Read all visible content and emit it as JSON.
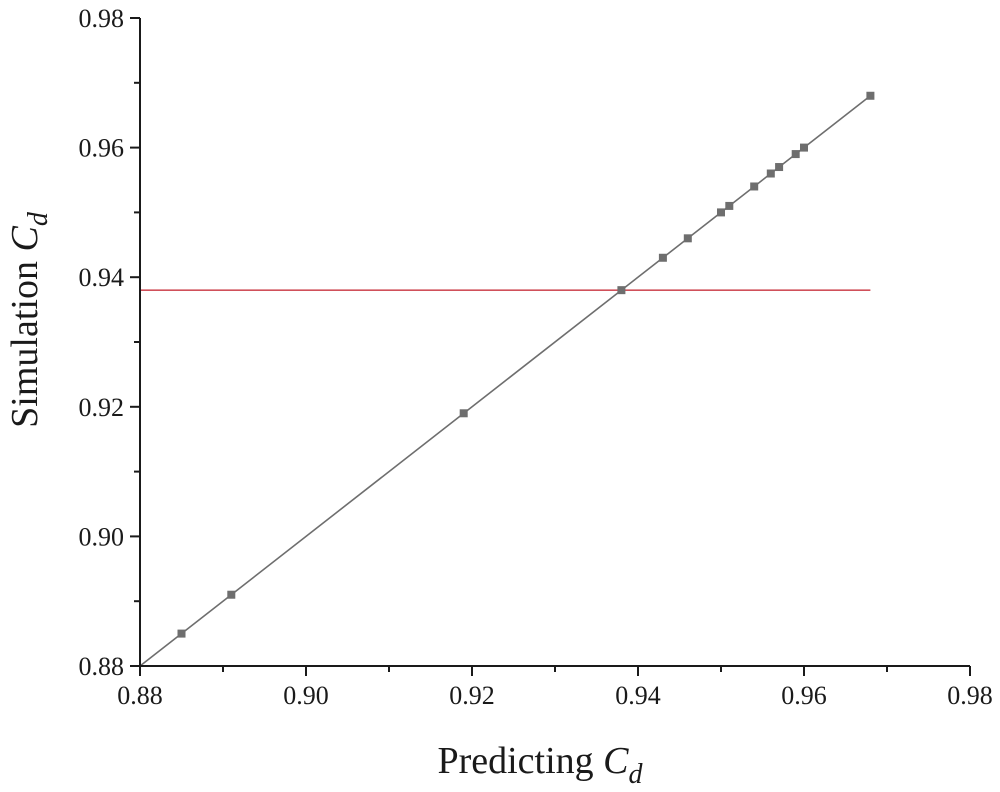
{
  "chart_data": {
    "type": "scatter",
    "xlabel": {
      "text": "Predicting ",
      "var": "C",
      "sub": "d"
    },
    "ylabel": {
      "text": "Simulation ",
      "var": "C",
      "sub": "d"
    },
    "xlim": [
      0.88,
      0.98
    ],
    "ylim": [
      0.88,
      0.98
    ],
    "xticks": [
      "0.88",
      "0.90",
      "0.92",
      "0.94",
      "0.96",
      "0.98"
    ],
    "yticks": [
      "0.88",
      "0.90",
      "0.92",
      "0.94",
      "0.96",
      "0.98"
    ],
    "grid": false,
    "colors": {
      "marker": "#6e6e6e",
      "fit_line": "#6e6e6e",
      "reference_line": "#d0505a",
      "axis": "#1a1a1a"
    },
    "series": [
      {
        "points": [
          [
            0.885,
            0.885
          ],
          [
            0.891,
            0.891
          ],
          [
            0.919,
            0.919
          ],
          [
            0.938,
            0.938
          ],
          [
            0.943,
            0.943
          ],
          [
            0.946,
            0.946
          ],
          [
            0.95,
            0.95
          ],
          [
            0.951,
            0.951
          ],
          [
            0.954,
            0.954
          ],
          [
            0.956,
            0.956
          ],
          [
            0.957,
            0.957
          ],
          [
            0.959,
            0.959
          ],
          [
            0.96,
            0.96
          ],
          [
            0.968,
            0.968
          ]
        ],
        "marker": "square"
      }
    ],
    "fit_line": {
      "from": [
        0.88,
        0.88
      ],
      "to": [
        0.968,
        0.968
      ]
    },
    "reference_line": {
      "y": 0.938,
      "x_from": 0.88,
      "x_to": 0.968
    }
  }
}
